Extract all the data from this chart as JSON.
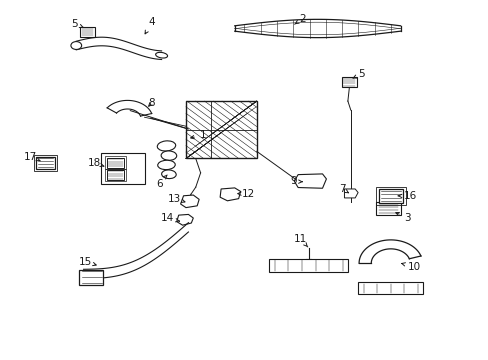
{
  "bg_color": "#ffffff",
  "fig_width": 4.89,
  "fig_height": 3.6,
  "dpi": 100,
  "line_color": "#1a1a1a",
  "label_fontsize": 7.5,
  "labels": {
    "1": [
      0.415,
      0.605,
      0.39,
      0.66
    ],
    "2": [
      0.62,
      0.945,
      0.595,
      0.93
    ],
    "3": [
      0.83,
      0.39,
      0.8,
      0.415
    ],
    "4": [
      0.31,
      0.94,
      0.295,
      0.905
    ],
    "5a": [
      0.155,
      0.93,
      0.185,
      0.92
    ],
    "5b": [
      0.73,
      0.79,
      0.71,
      0.775
    ],
    "6": [
      0.33,
      0.49,
      0.36,
      0.52
    ],
    "7": [
      0.7,
      0.47,
      0.715,
      0.46
    ],
    "8": [
      0.31,
      0.71,
      0.32,
      0.695
    ],
    "9": [
      0.6,
      0.49,
      0.625,
      0.49
    ],
    "10": [
      0.84,
      0.255,
      0.81,
      0.27
    ],
    "11": [
      0.615,
      0.33,
      0.62,
      0.31
    ],
    "12": [
      0.5,
      0.46,
      0.48,
      0.465
    ],
    "13": [
      0.36,
      0.445,
      0.385,
      0.435
    ],
    "14": [
      0.345,
      0.39,
      0.37,
      0.38
    ],
    "15": [
      0.175,
      0.27,
      0.2,
      0.26
    ],
    "16": [
      0.83,
      0.45,
      0.8,
      0.455
    ],
    "17": [
      0.065,
      0.56,
      0.09,
      0.55
    ],
    "18": [
      0.195,
      0.545,
      0.23,
      0.535
    ]
  }
}
